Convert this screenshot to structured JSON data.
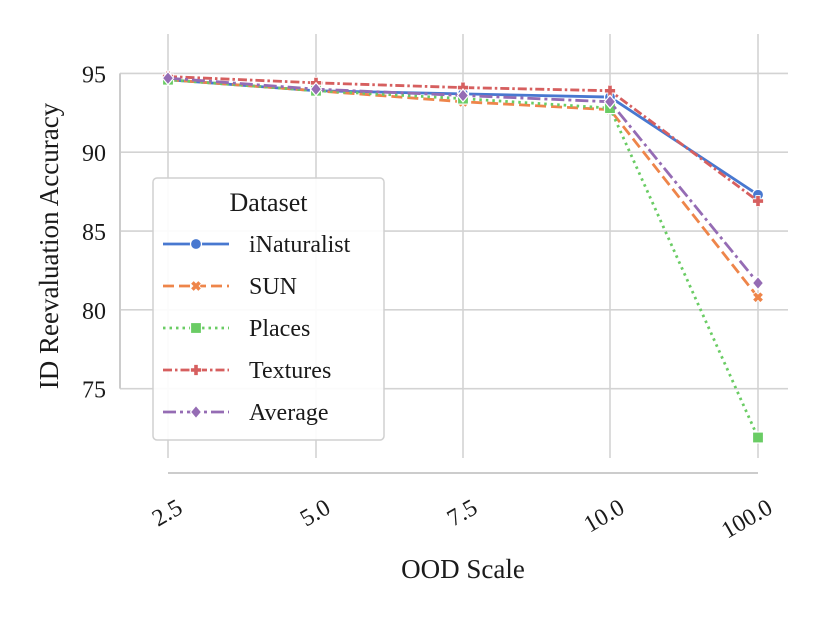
{
  "chart_data": {
    "type": "line",
    "title": "",
    "xlabel": "OOD Scale",
    "ylabel": "ID Reevaluation Accuracy",
    "categories": [
      "2.5",
      "5.0",
      "7.5",
      "10.0",
      "100.0"
    ],
    "ylim": [
      70.6,
      97.5
    ],
    "yticks": [
      75,
      80,
      85,
      90,
      95
    ],
    "ytick_labels": [
      "75",
      "80",
      "85",
      "90",
      "95"
    ],
    "grid": true,
    "legend": {
      "title": "Dataset",
      "position": "center-left"
    },
    "series": [
      {
        "name": "iNaturalist",
        "color": "#4878d0",
        "dash": "solid",
        "marker": "circle",
        "values": [
          94.6,
          93.9,
          93.7,
          93.5,
          87.3
        ]
      },
      {
        "name": "SUN",
        "color": "#ee854a",
        "dash": "dashed",
        "marker": "x",
        "values": [
          94.6,
          93.9,
          93.2,
          92.7,
          80.8
        ]
      },
      {
        "name": "Places",
        "color": "#6acc64",
        "dash": "dotted",
        "marker": "square",
        "values": [
          94.6,
          93.9,
          93.4,
          92.8,
          71.9
        ]
      },
      {
        "name": "Textures",
        "color": "#d65f5f",
        "dash": "dashdot-dense",
        "marker": "plus",
        "values": [
          94.8,
          94.4,
          94.1,
          93.9,
          86.9
        ]
      },
      {
        "name": "Average",
        "color": "#956cb4",
        "dash": "dashdot",
        "marker": "diamond",
        "values": [
          94.7,
          94.0,
          93.6,
          93.2,
          81.7
        ]
      }
    ]
  }
}
